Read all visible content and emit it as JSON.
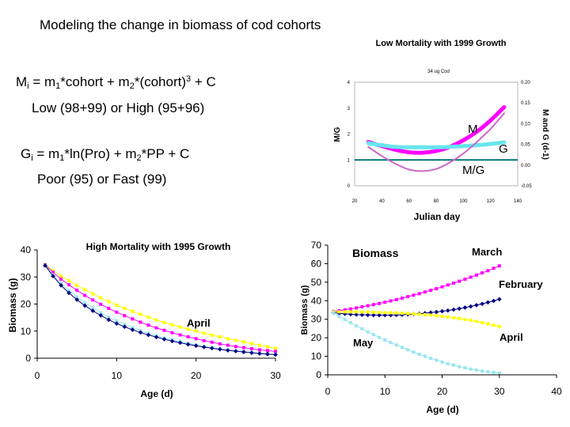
{
  "slide": {
    "title": "Modeling the change in biomass of cod cohorts",
    "mort_eq": {
      "lhs": "M",
      "lhs_sub": "i",
      "p1": " = m",
      "p1_sub": "1",
      "p2": "*cohort + m",
      "p2_sub": "2",
      "p3": "*(cohort)",
      "p3_sup": "3",
      "p4": " + C"
    },
    "mort_note": "Low (98+99) or High (95+96)",
    "growth_eq": {
      "lhs": "G",
      "lhs_sub": "i",
      "p1": " = m",
      "p1_sub": "1",
      "p2": "*ln(Pro) + m",
      "p2_sub": "2",
      "p3": "*PP + C"
    },
    "growth_note": "Poor (95) or Fast (99)"
  },
  "chart_data": [
    {
      "type": "line",
      "title": "Low Mortality with 1999 Growth",
      "subtitle": "34 ug Cod",
      "xlabel": "Julian day",
      "ylabel": "M/G",
      "y2label": "M and G (d-1)",
      "xlim": [
        20,
        140
      ],
      "ylim": [
        0,
        4
      ],
      "y2lim": [
        -0.05,
        0.2
      ],
      "xticks": [
        "20",
        "40",
        "60",
        "80",
        "100",
        "120",
        "140"
      ],
      "yticks": [
        "0",
        "1",
        "2",
        "3",
        "4"
      ],
      "y2ticks": [
        "-0.05",
        "0.00",
        "0.05",
        "0.10",
        "0.15",
        "0.20"
      ],
      "x": [
        30,
        40,
        50,
        60,
        70,
        80,
        90,
        100,
        110,
        120,
        130
      ],
      "series": [
        {
          "name": "M",
          "axis": "right",
          "color": "#ff00ff",
          "values": [
            0.056,
            0.046,
            0.037,
            0.031,
            0.03,
            0.034,
            0.044,
            0.06,
            0.081,
            0.108,
            0.14
          ]
        },
        {
          "name": "G",
          "axis": "right",
          "color": "#66e6ee",
          "values": [
            0.053,
            0.048,
            0.044,
            0.043,
            0.043,
            0.043,
            0.044,
            0.046,
            0.048,
            0.051,
            0.055
          ]
        },
        {
          "name": "M/G",
          "axis": "left",
          "color": "#cc66cc",
          "values": [
            1.5,
            1.15,
            0.85,
            0.63,
            0.57,
            0.65,
            0.9,
            1.25,
            1.7,
            2.2,
            2.8
          ]
        }
      ],
      "reference_line": {
        "axis": "left",
        "value": 1,
        "color": "#007777"
      },
      "labels": [
        "M",
        "G",
        "M/G"
      ]
    },
    {
      "type": "line",
      "title": "High Mortality with 1995 Growth",
      "xlabel": "Age (d)",
      "ylabel": "Biomass (g)",
      "xlim": [
        0,
        30
      ],
      "ylim": [
        0,
        40
      ],
      "xticks": [
        "0",
        "10",
        "20",
        "30"
      ],
      "yticks": [
        "0",
        "10",
        "20",
        "30",
        "40"
      ],
      "x": [
        1,
        2,
        3,
        4,
        5,
        6,
        7,
        8,
        9,
        10,
        11,
        12,
        13,
        14,
        15,
        16,
        17,
        18,
        19,
        20,
        21,
        22,
        23,
        24,
        25,
        26,
        27,
        28,
        29,
        30
      ],
      "series": [
        {
          "color": "#ffff00",
          "values": [
            34.6,
            32.3,
            30.3,
            28.6,
            26.9,
            25.3,
            23.8,
            22.3,
            20.9,
            19.6,
            18.4,
            17.3,
            16.2,
            15.1,
            14.1,
            13.2,
            12.3,
            11.5,
            10.7,
            10.0,
            9.2,
            8.5,
            7.9,
            7.2,
            6.6,
            6.0,
            5.4,
            4.8,
            4.2,
            3.6
          ]
        },
        {
          "color": "#ff00ff",
          "values": [
            34.5,
            31.7,
            29.2,
            27.1,
            25.1,
            23.2,
            21.5,
            19.9,
            18.4,
            17.0,
            15.7,
            14.5,
            13.3,
            12.2,
            11.2,
            10.3,
            9.4,
            8.6,
            7.9,
            7.2,
            6.5,
            5.9,
            5.3,
            4.8,
            4.3,
            3.9,
            3.5,
            3.1,
            2.8,
            2.5
          ]
        },
        {
          "color": "#99e6ee",
          "values": [
            34.3,
            30.8,
            27.7,
            25.0,
            22.6,
            20.5,
            18.6,
            16.8,
            15.2,
            13.8,
            12.5,
            11.3,
            10.2,
            9.2,
            8.3,
            7.5,
            6.8,
            6.1,
            5.5,
            4.9,
            4.4,
            3.9,
            3.5,
            3.1,
            2.7,
            2.4,
            2.1,
            1.9,
            1.6,
            1.4
          ]
        },
        {
          "color": "#000080",
          "values": [
            34.2,
            30.3,
            26.9,
            24.1,
            21.6,
            19.4,
            17.5,
            15.8,
            14.2,
            12.8,
            11.6,
            10.5,
            9.5,
            8.6,
            7.8,
            7.0,
            6.3,
            5.7,
            5.1,
            4.6,
            4.1,
            3.7,
            3.3,
            2.9,
            2.6,
            2.3,
            2.0,
            1.7,
            1.5,
            1.3
          ]
        }
      ],
      "annotations": [
        "April"
      ]
    },
    {
      "type": "line",
      "title": "Biomass",
      "xlabel": "Age (d)",
      "ylabel": "Biomass (g)",
      "xlim": [
        0,
        40
      ],
      "ylim": [
        0,
        70
      ],
      "xticks": [
        "0",
        "10",
        "20",
        "30",
        "40"
      ],
      "yticks": [
        "0",
        "10",
        "20",
        "30",
        "40",
        "50",
        "60",
        "70"
      ],
      "x": [
        1,
        2,
        3,
        4,
        5,
        6,
        7,
        8,
        9,
        10,
        11,
        12,
        13,
        14,
        15,
        16,
        17,
        18,
        19,
        20,
        21,
        22,
        23,
        24,
        25,
        26,
        27,
        28,
        29,
        30
      ],
      "series": [
        {
          "name": "March",
          "color": "#ff00ff",
          "values": [
            34.2,
            34.6,
            35.1,
            35.6,
            36.1,
            36.7,
            37.3,
            37.9,
            38.5,
            39.2,
            39.9,
            40.6,
            41.4,
            42.2,
            43.0,
            43.8,
            44.7,
            45.6,
            46.5,
            47.5,
            48.5,
            49.5,
            50.5,
            51.6,
            52.7,
            53.8,
            55.0,
            56.2,
            57.5,
            58.8
          ]
        },
        {
          "name": "February",
          "color": "#000080",
          "values": [
            33.6,
            33.2,
            32.9,
            32.7,
            32.5,
            32.4,
            32.3,
            32.2,
            32.2,
            32.2,
            32.2,
            32.3,
            32.4,
            32.6,
            32.8,
            33.0,
            33.3,
            33.6,
            33.9,
            34.3,
            34.7,
            35.2,
            35.7,
            36.3,
            36.9,
            37.6,
            38.3,
            39.1,
            39.9,
            40.8
          ]
        },
        {
          "name": "April",
          "color": "#ffff00",
          "values": [
            34.0,
            34.0,
            34.0,
            34.0,
            34.0,
            33.9,
            33.9,
            33.8,
            33.7,
            33.6,
            33.5,
            33.4,
            33.3,
            33.1,
            32.9,
            32.7,
            32.5,
            32.2,
            31.9,
            31.6,
            31.2,
            30.8,
            30.4,
            29.9,
            29.4,
            28.8,
            28.2,
            27.5,
            26.8,
            26.0
          ]
        },
        {
          "name": "May",
          "color": "#99e6ee",
          "values": [
            33.5,
            31.6,
            29.8,
            28.1,
            26.4,
            24.8,
            23.2,
            21.7,
            20.2,
            18.8,
            17.4,
            16.1,
            14.8,
            13.5,
            12.3,
            11.1,
            10.0,
            8.9,
            7.9,
            6.9,
            6.0,
            5.2,
            4.4,
            3.7,
            3.1,
            2.5,
            2.0,
            1.6,
            1.3,
            1.0
          ]
        }
      ]
    }
  ]
}
